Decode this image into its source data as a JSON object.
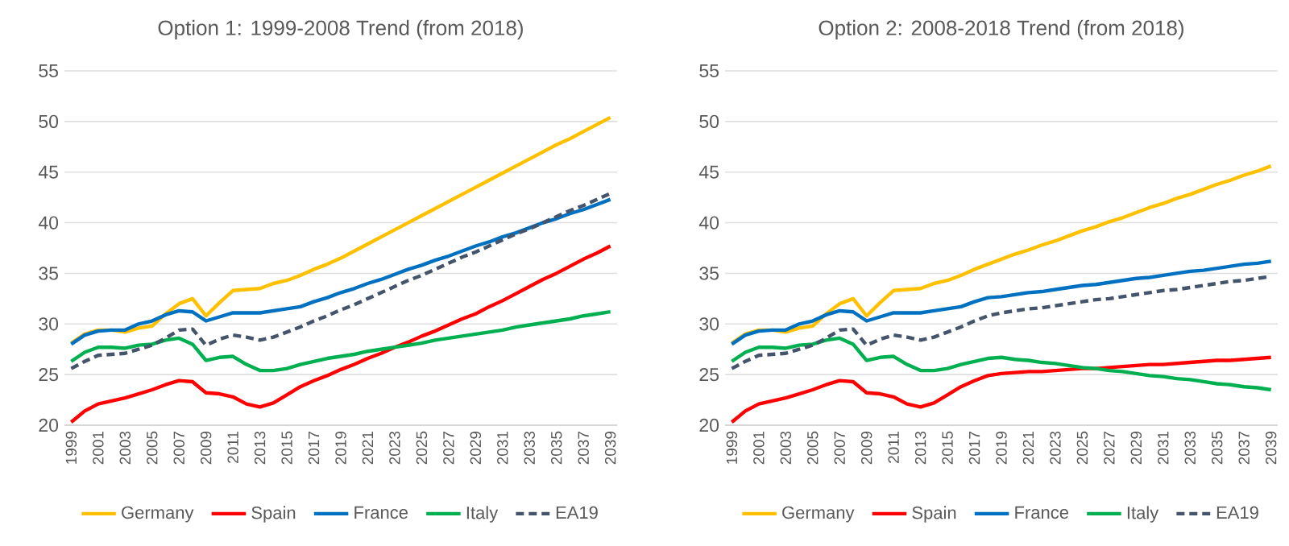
{
  "chart_data": [
    {
      "type": "line",
      "title": "Option 1: 1999-2008 Trend (from 2018)",
      "categories": [
        "1999",
        null,
        "2001",
        null,
        "2003",
        null,
        "2005",
        null,
        "2007",
        null,
        "2009",
        null,
        "2011",
        null,
        "2013",
        null,
        "2015",
        null,
        "2017",
        null,
        "2019",
        null,
        "2021",
        null,
        "2023",
        null,
        "2025",
        null,
        "2027",
        null,
        "2029",
        null,
        "2031",
        null,
        "2033",
        null,
        "2035",
        null,
        "2037",
        null,
        "2039"
      ],
      "ylim": [
        20,
        55
      ],
      "yticks": [
        20,
        25,
        30,
        35,
        40,
        45,
        50,
        55
      ],
      "grid": "y",
      "legend": "bottom",
      "series": [
        {
          "name": "Germany",
          "color": "#ffc000",
          "values": [
            28.1,
            29.0,
            29.4,
            29.4,
            29.2,
            29.6,
            29.8,
            31.0,
            32.0,
            32.5,
            30.8,
            32.1,
            33.3,
            33.4,
            33.5,
            34.0,
            34.3,
            34.8,
            35.4,
            35.9,
            36.5,
            37.2,
            37.9,
            38.6,
            39.3,
            40.0,
            40.7,
            41.4,
            42.1,
            42.8,
            43.5,
            44.2,
            44.9,
            45.6,
            46.3,
            47.0,
            47.7,
            48.3,
            49.0,
            49.7,
            50.4
          ]
        },
        {
          "name": "Spain",
          "color": "#ff0000",
          "values": [
            20.3,
            21.4,
            22.1,
            22.4,
            22.7,
            23.1,
            23.5,
            24.0,
            24.4,
            24.3,
            23.2,
            23.1,
            22.8,
            22.1,
            21.8,
            22.2,
            23.0,
            23.8,
            24.4,
            24.9,
            25.5,
            26.0,
            26.6,
            27.1,
            27.7,
            28.2,
            28.8,
            29.3,
            29.9,
            30.5,
            31.0,
            31.7,
            32.3,
            33.0,
            33.7,
            34.4,
            35.0,
            35.7,
            36.4,
            37.0,
            37.7
          ]
        },
        {
          "name": "France",
          "color": "#0070c0",
          "values": [
            28.0,
            28.9,
            29.3,
            29.4,
            29.4,
            30.0,
            30.3,
            30.9,
            31.3,
            31.2,
            30.3,
            30.7,
            31.1,
            31.1,
            31.1,
            31.3,
            31.5,
            31.7,
            32.2,
            32.6,
            33.1,
            33.5,
            34.0,
            34.4,
            34.9,
            35.4,
            35.8,
            36.3,
            36.7,
            37.2,
            37.7,
            38.1,
            38.6,
            39.0,
            39.5,
            40.0,
            40.4,
            40.9,
            41.3,
            41.8,
            42.3
          ]
        },
        {
          "name": "Italy",
          "color": "#00b050",
          "values": [
            26.3,
            27.2,
            27.7,
            27.7,
            27.6,
            27.9,
            28.0,
            28.4,
            28.6,
            28.0,
            26.4,
            26.7,
            26.8,
            26.0,
            25.4,
            25.4,
            25.6,
            26.0,
            26.3,
            26.6,
            26.8,
            27.0,
            27.3,
            27.5,
            27.7,
            27.9,
            28.1,
            28.4,
            28.6,
            28.8,
            29.0,
            29.2,
            29.4,
            29.7,
            29.9,
            30.1,
            30.3,
            30.5,
            30.8,
            31.0,
            31.2
          ]
        },
        {
          "name": "EA19",
          "color": "#44546a",
          "line_style": "dashed",
          "values": [
            25.6,
            26.3,
            26.9,
            27.0,
            27.1,
            27.5,
            27.9,
            28.6,
            29.4,
            29.5,
            27.9,
            28.5,
            28.9,
            28.7,
            28.4,
            28.7,
            29.2,
            29.7,
            30.3,
            30.8,
            31.4,
            31.9,
            32.5,
            33.1,
            33.7,
            34.3,
            34.8,
            35.4,
            36.0,
            36.6,
            37.1,
            37.7,
            38.3,
            38.9,
            39.4,
            40.0,
            40.6,
            41.2,
            41.7,
            42.3,
            42.9
          ]
        }
      ]
    },
    {
      "type": "line",
      "title": "Option 2: 2008-2018 Trend (from 2018)",
      "categories": [
        "1999",
        null,
        "2001",
        null,
        "2003",
        null,
        "2005",
        null,
        "2007",
        null,
        "2009",
        null,
        "2011",
        null,
        "2013",
        null,
        "2015",
        null,
        "2017",
        null,
        "2019",
        null,
        "2021",
        null,
        "2023",
        null,
        "2025",
        null,
        "2027",
        null,
        "2029",
        null,
        "2031",
        null,
        "2033",
        null,
        "2035",
        null,
        "2037",
        null,
        "2039"
      ],
      "ylim": [
        20,
        55
      ],
      "yticks": [
        20,
        25,
        30,
        35,
        40,
        45,
        50,
        55
      ],
      "grid": "y",
      "legend": "bottom",
      "series": [
        {
          "name": "Germany",
          "color": "#ffc000",
          "values": [
            28.1,
            29.0,
            29.4,
            29.4,
            29.2,
            29.6,
            29.8,
            31.0,
            32.0,
            32.5,
            30.8,
            32.1,
            33.3,
            33.4,
            33.5,
            34.0,
            34.3,
            34.8,
            35.4,
            35.9,
            36.4,
            36.9,
            37.3,
            37.8,
            38.2,
            38.7,
            39.2,
            39.6,
            40.1,
            40.5,
            41.0,
            41.5,
            41.9,
            42.4,
            42.8,
            43.3,
            43.8,
            44.2,
            44.7,
            45.1,
            45.6
          ]
        },
        {
          "name": "Spain",
          "color": "#ff0000",
          "values": [
            20.3,
            21.4,
            22.1,
            22.4,
            22.7,
            23.1,
            23.5,
            24.0,
            24.4,
            24.3,
            23.2,
            23.1,
            22.8,
            22.1,
            21.8,
            22.2,
            23.0,
            23.8,
            24.4,
            24.9,
            25.1,
            25.2,
            25.3,
            25.3,
            25.4,
            25.5,
            25.6,
            25.6,
            25.7,
            25.8,
            25.9,
            26.0,
            26.0,
            26.1,
            26.2,
            26.3,
            26.4,
            26.4,
            26.5,
            26.6,
            26.7
          ]
        },
        {
          "name": "France",
          "color": "#0070c0",
          "values": [
            28.0,
            28.9,
            29.3,
            29.4,
            29.4,
            30.0,
            30.3,
            30.9,
            31.3,
            31.2,
            30.3,
            30.7,
            31.1,
            31.1,
            31.1,
            31.3,
            31.5,
            31.7,
            32.2,
            32.6,
            32.7,
            32.9,
            33.1,
            33.2,
            33.4,
            33.6,
            33.8,
            33.9,
            34.1,
            34.3,
            34.5,
            34.6,
            34.8,
            35.0,
            35.2,
            35.3,
            35.5,
            35.7,
            35.9,
            36.0,
            36.2
          ]
        },
        {
          "name": "Italy",
          "color": "#00b050",
          "values": [
            26.3,
            27.2,
            27.7,
            27.7,
            27.6,
            27.9,
            28.0,
            28.4,
            28.6,
            28.0,
            26.4,
            26.7,
            26.8,
            26.0,
            25.4,
            25.4,
            25.6,
            26.0,
            26.3,
            26.6,
            26.7,
            26.5,
            26.4,
            26.2,
            26.1,
            25.9,
            25.7,
            25.6,
            25.4,
            25.3,
            25.1,
            24.9,
            24.8,
            24.6,
            24.5,
            24.3,
            24.1,
            24.0,
            23.8,
            23.7,
            23.5
          ]
        },
        {
          "name": "EA19",
          "color": "#44546a",
          "line_style": "dashed",
          "values": [
            25.6,
            26.3,
            26.9,
            27.0,
            27.1,
            27.5,
            27.9,
            28.6,
            29.4,
            29.5,
            27.9,
            28.5,
            28.9,
            28.7,
            28.4,
            28.7,
            29.2,
            29.7,
            30.3,
            30.8,
            31.1,
            31.3,
            31.5,
            31.6,
            31.8,
            32.0,
            32.2,
            32.4,
            32.5,
            32.7,
            32.9,
            33.1,
            33.3,
            33.4,
            33.6,
            33.8,
            34.0,
            34.2,
            34.3,
            34.5,
            34.7
          ]
        }
      ]
    }
  ]
}
